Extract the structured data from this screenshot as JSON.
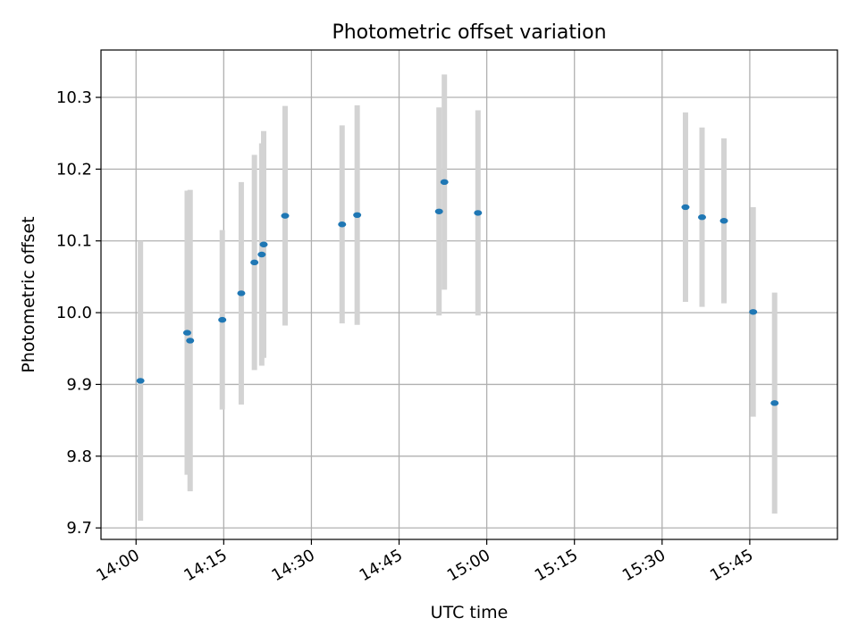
{
  "chart_data": {
    "type": "scatter",
    "title": "Photometric offset variation",
    "xlabel": "UTC time",
    "ylabel": "Photometric offset",
    "x_axis_type": "time",
    "xlim": [
      "13:54",
      "16:00"
    ],
    "ylim": [
      9.684,
      10.366
    ],
    "x_ticks": [
      "14:00",
      "14:15",
      "14:30",
      "14:45",
      "15:00",
      "15:15",
      "15:30",
      "15:45"
    ],
    "y_ticks": [
      "9.7",
      "9.8",
      "9.9",
      "10.0",
      "10.1",
      "10.2",
      "10.3"
    ],
    "grid": true,
    "colors": {
      "marker": "#1f77b4",
      "errorbar": "#d3d3d3",
      "grid": "#b0b0b0"
    },
    "points": [
      {
        "t": "14:00:45",
        "y": 9.905,
        "err": 0.195
      },
      {
        "t": "14:08:45",
        "y": 9.972,
        "err": 0.198
      },
      {
        "t": "14:09:15",
        "y": 9.961,
        "err": 0.21
      },
      {
        "t": "14:14:45",
        "y": 9.99,
        "err": 0.125
      },
      {
        "t": "14:18:00",
        "y": 10.027,
        "err": 0.155
      },
      {
        "t": "14:20:15",
        "y": 10.07,
        "err": 0.15
      },
      {
        "t": "14:21:30",
        "y": 10.081,
        "err": 0.155
      },
      {
        "t": "14:21:50",
        "y": 10.095,
        "err": 0.158
      },
      {
        "t": "14:25:30",
        "y": 10.135,
        "err": 0.153
      },
      {
        "t": "14:35:15",
        "y": 10.123,
        "err": 0.138
      },
      {
        "t": "14:37:50",
        "y": 10.136,
        "err": 0.153
      },
      {
        "t": "14:51:50",
        "y": 10.141,
        "err": 0.145
      },
      {
        "t": "14:52:45",
        "y": 10.182,
        "err": 0.15
      },
      {
        "t": "14:58:30",
        "y": 10.139,
        "err": 0.143
      },
      {
        "t": "15:34:00",
        "y": 10.147,
        "err": 0.132
      },
      {
        "t": "15:36:50",
        "y": 10.133,
        "err": 0.125
      },
      {
        "t": "15:40:35",
        "y": 10.128,
        "err": 0.115
      },
      {
        "t": "15:45:35",
        "y": 10.001,
        "err": 0.146
      },
      {
        "t": "15:49:15",
        "y": 9.874,
        "err": 0.154
      }
    ]
  }
}
